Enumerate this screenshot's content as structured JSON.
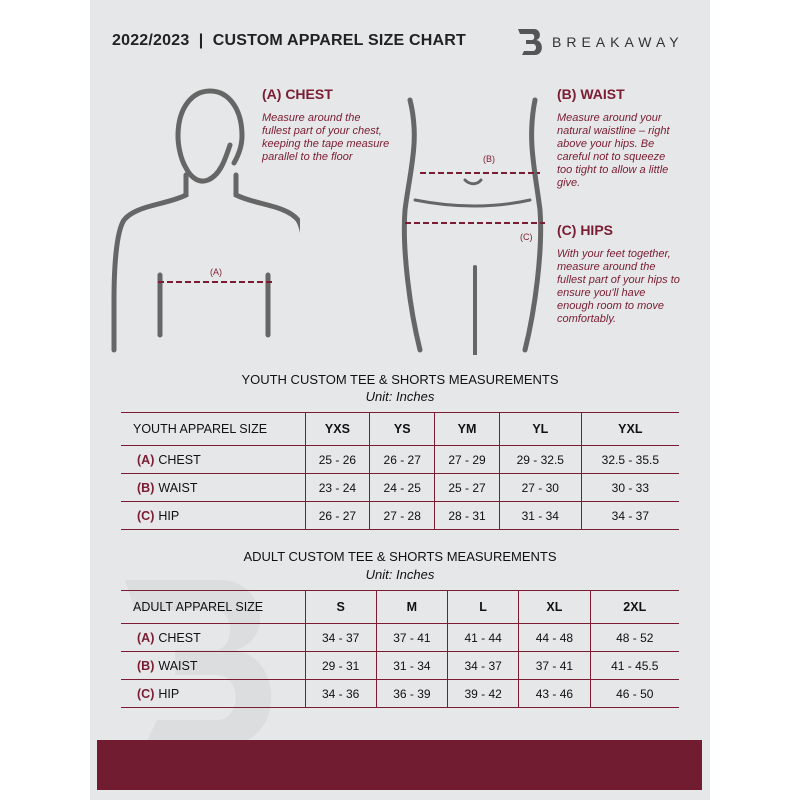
{
  "header": {
    "title": "2022/2023  |  CUSTOM APPAREL SIZE CHART",
    "brand": "BREAKAWAY",
    "logo_letter": "B"
  },
  "colors": {
    "accent": "#7a1c32",
    "background": "#e6e7e8",
    "footer": "#721c31"
  },
  "chest": {
    "title": "(A) CHEST",
    "desc": "Measure around the fullest part of your chest, keeping the tape measure parallel to the floor",
    "marker": "(A)"
  },
  "waist": {
    "title": "(B) WAIST",
    "desc": "Measure around your natural waistline – right above your hips. Be careful not to squeeze too tight to allow a little give.",
    "marker": "(B)"
  },
  "hips": {
    "title": "(C) HIPS",
    "desc": "With your feet together, measure around the fullest part of your hips to ensure you'll have enough room to move comfortably.",
    "marker": "(C)"
  },
  "youth": {
    "title": "YOUTH CUSTOM TEE & SHORTS MEASUREMENTS",
    "unit": "Unit: Inches",
    "header": "YOUTH APPAREL SIZE",
    "sizes": [
      "YXS",
      "YS",
      "YM",
      "YL",
      "YXL"
    ],
    "rows": [
      {
        "letter": "(A)",
        "label": "CHEST",
        "values": [
          "25 - 26",
          "26 - 27",
          "27 - 29",
          "29 - 32.5",
          "32.5 - 35.5"
        ]
      },
      {
        "letter": "(B)",
        "label": "WAIST",
        "values": [
          "23 - 24",
          "24 - 25",
          "25 - 27",
          "27 - 30",
          "30 - 33"
        ]
      },
      {
        "letter": "(C)",
        "label": "HIP",
        "values": [
          "26 - 27",
          "27 - 28",
          "28 - 31",
          "31 - 34",
          "34 - 37"
        ]
      }
    ]
  },
  "adult": {
    "title": "ADULT CUSTOM TEE & SHORTS MEASUREMENTS",
    "unit": "Unit: Inches",
    "header": "ADULT APPAREL SIZE",
    "sizes": [
      "S",
      "M",
      "L",
      "XL",
      "2XL"
    ],
    "rows": [
      {
        "letter": "(A)",
        "label": "CHEST",
        "values": [
          "34 - 37",
          "37 - 41",
          "41 - 44",
          "44 - 48",
          "48 - 52"
        ]
      },
      {
        "letter": "(B)",
        "label": "WAIST",
        "values": [
          "29 - 31",
          "31 - 34",
          "34 - 37",
          "37 - 41",
          "41 - 45.5"
        ]
      },
      {
        "letter": "(C)",
        "label": "HIP",
        "values": [
          "34 - 36",
          "36 - 39",
          "39 - 42",
          "43 - 46",
          "46 - 50"
        ]
      }
    ]
  }
}
